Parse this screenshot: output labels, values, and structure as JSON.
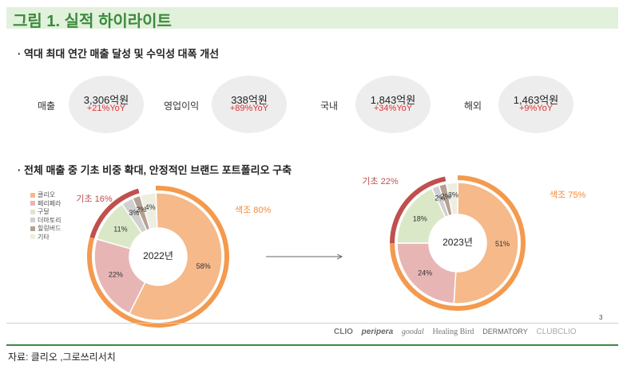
{
  "title": "그림 1. 실적 하이라이트",
  "section1": "· 역대 최대 연간 매출 달성 및 수익성 대폭 개선",
  "section2": "· 전체 매출 중 기초 비중 확대, 안정적인 브랜드 포트폴리오 구축",
  "kpis": [
    {
      "label": "매출",
      "value": "3,306억원",
      "yoy": "+21%YoY"
    },
    {
      "label": "영업이익",
      "value": "338억원",
      "yoy": "+89%YoY"
    },
    {
      "label": "국내",
      "value": "1,843억원",
      "yoy": "+34%YoY"
    },
    {
      "label": "해외",
      "value": "1,463억원",
      "yoy": "+9%YoY"
    }
  ],
  "legend": [
    {
      "name": "클리오",
      "color": "#f5b98a"
    },
    {
      "name": "페리페라",
      "color": "#e8b5b5"
    },
    {
      "name": "구달",
      "color": "#dbe8c8"
    },
    {
      "name": "더마토리",
      "color": "#d0d0d0"
    },
    {
      "name": "힐링버드",
      "color": "#b5a093"
    },
    {
      "name": "기타",
      "color": "#eeeee0"
    }
  ],
  "colors": {
    "outer_color": "#f39a4e",
    "base_color": "#c0504d",
    "yoy_red": "#e03030",
    "title_green": "#3c8a3c"
  },
  "chart_data": [
    {
      "type": "pie",
      "center_label": "2022년",
      "categories": [
        "클리오",
        "페리페라",
        "구달",
        "더마토리",
        "힐링버드",
        "기타"
      ],
      "values": [
        58,
        22,
        11,
        3,
        2,
        4
      ],
      "labels": [
        "58%",
        "22%",
        "11%",
        "3%",
        "2%",
        "4%"
      ],
      "groups": [
        {
          "name": "색조",
          "value": 80,
          "label": "색조 80%"
        },
        {
          "name": "기초",
          "value": 16,
          "label": "기초 16%"
        }
      ]
    },
    {
      "type": "pie",
      "center_label": "2023년",
      "categories": [
        "클리오",
        "페리페라",
        "구달",
        "더마토리",
        "힐링버드",
        "기타"
      ],
      "values": [
        51,
        24,
        18,
        2,
        2,
        3
      ],
      "labels": [
        "51%",
        "24%",
        "18%",
        "2%",
        "2%",
        "3%"
      ],
      "groups": [
        {
          "name": "색조",
          "value": 75,
          "label": "색조 75%"
        },
        {
          "name": "기초",
          "value": 22,
          "label": "기초 22%"
        }
      ]
    }
  ],
  "page_number": "3",
  "brands": [
    "CLIO",
    "peripera",
    "goodal",
    "Healing Bird",
    "DERMATORY",
    "CLUBCLIO"
  ],
  "source": "자료: 클리오 ,그로쓰리서치"
}
